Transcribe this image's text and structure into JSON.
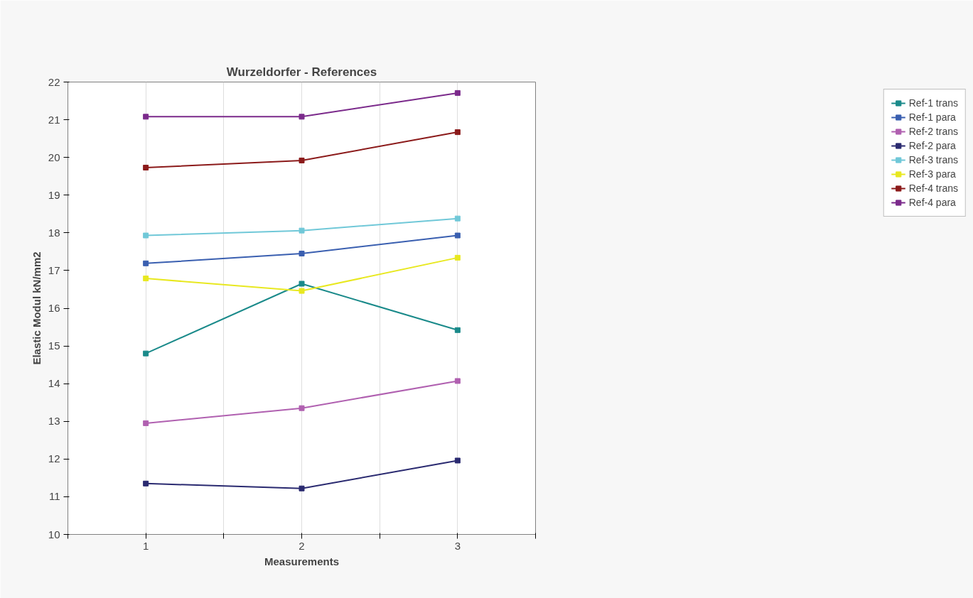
{
  "chart_data": {
    "type": "line",
    "title": "Wurzeldorfer - References",
    "xlabel": "Measurements",
    "ylabel": "Elastic Modul kN/mm2",
    "x": [
      1,
      2,
      3
    ],
    "xlim": [
      0.5,
      3.5
    ],
    "xticks": [
      {
        "value": 0.5,
        "label": null
      },
      1,
      {
        "value": 1.5,
        "label": null
      },
      2,
      {
        "value": 2.5,
        "label": null
      },
      3,
      {
        "value": 3.5,
        "label": null
      }
    ],
    "ylim": [
      10,
      22
    ],
    "yticks": [
      10,
      11,
      12,
      13,
      14,
      15,
      16,
      17,
      18,
      19,
      20,
      21,
      22
    ],
    "grid": "x",
    "legend": "right",
    "marker": "square",
    "line_style": "solid",
    "series": [
      {
        "name": "Ref-1 trans",
        "color": "#1a8a8a",
        "values": [
          14.8,
          16.65,
          15.42
        ]
      },
      {
        "name": "Ref-1 para",
        "color": "#3a5fb0",
        "values": [
          17.19,
          17.45,
          17.93
        ]
      },
      {
        "name": "Ref-2 trans",
        "color": "#b060b0",
        "values": [
          12.95,
          13.35,
          14.07
        ]
      },
      {
        "name": "Ref-2 para",
        "color": "#2a2a70",
        "values": [
          11.35,
          11.22,
          11.96
        ]
      },
      {
        "name": "Ref-3 trans",
        "color": "#70c8d8",
        "values": [
          17.93,
          18.06,
          18.38
        ]
      },
      {
        "name": "Ref-3 para",
        "color": "#e8e820",
        "values": [
          16.79,
          16.46,
          17.34
        ]
      },
      {
        "name": "Ref-4 trans",
        "color": "#8b1a1a",
        "values": [
          19.73,
          19.92,
          20.67
        ]
      },
      {
        "name": "Ref-4 para",
        "color": "#7b2a8b",
        "values": [
          21.08,
          21.08,
          21.71
        ]
      }
    ]
  }
}
